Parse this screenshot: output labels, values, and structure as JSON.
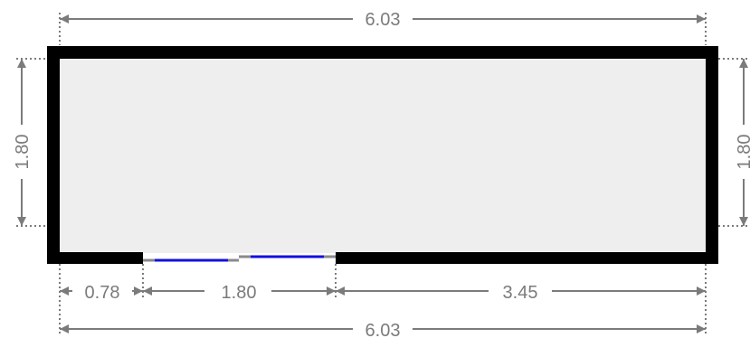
{
  "colors": {
    "wall": "#000000",
    "floor": "#eeeeee",
    "dimension": "#7b7b7b",
    "window_glass": "#1010e0",
    "window_frame": "#8a8a8a"
  },
  "dimensions": {
    "top_total": "6.03",
    "bottom_total": "6.03",
    "left_height": "1.80",
    "right_height": "1.80",
    "bottom_segment_1": "0.78",
    "bottom_segment_2": "1.80",
    "bottom_segment_3": "3.45"
  }
}
